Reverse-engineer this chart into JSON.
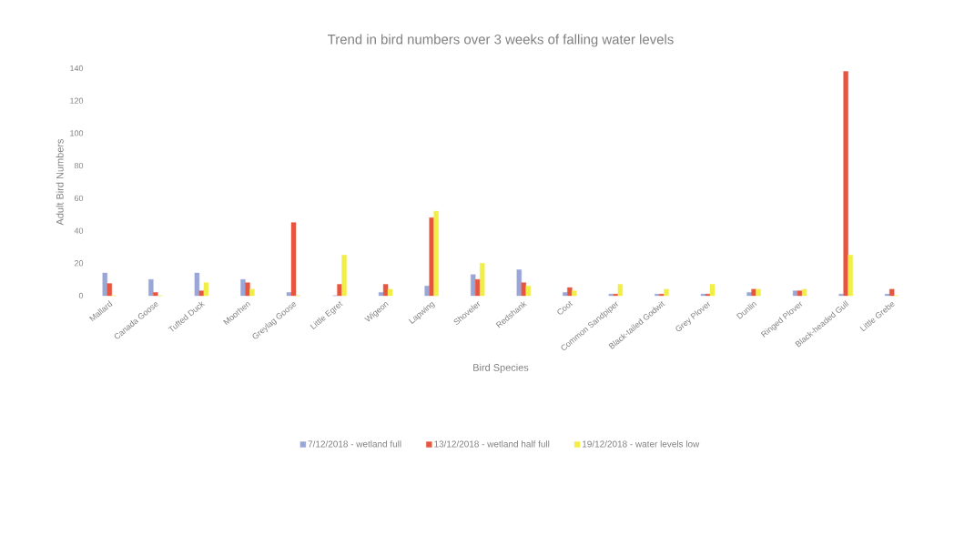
{
  "chart_data": {
    "type": "bar",
    "title": "Trend in bird numbers over 3 weeks of falling water levels",
    "xlabel": "Bird Species",
    "ylabel": "Adult Bird Numbers",
    "categories": [
      "Mallard",
      "Canada Goose",
      "Tufted Duck",
      "Moorhen",
      "Greylag Goose",
      "Little Egret",
      "Wigeon",
      "Lapwing",
      "Shoveler",
      "Redshank",
      "Coot",
      "Common Sandpiper",
      "Black-tailed Godwit",
      "Grey Plover",
      "Dunlin",
      "Ringed Plover",
      "Black-headed Gull",
      "Little Grebe"
    ],
    "series": [
      {
        "name": "7/12/2018 - wetland full",
        "color": "#9aa6d6",
        "values": [
          14,
          10,
          14,
          10,
          2,
          0,
          2,
          6,
          13,
          16,
          2,
          1,
          1,
          1,
          2,
          3,
          1,
          1
        ]
      },
      {
        "name": "13/12/2018 - wetland half full",
        "color": "#e8553f",
        "values": [
          7.5,
          2,
          3,
          8,
          45,
          7,
          7,
          48,
          10,
          8,
          5,
          1,
          1,
          1,
          4,
          3,
          138,
          4
        ]
      },
      {
        "name": "19/12/2018 - water levels low",
        "color": "#f2ee48",
        "values": [
          0,
          0,
          8,
          4,
          0,
          25,
          4,
          52,
          20,
          6,
          3,
          7,
          4,
          7,
          4,
          4,
          25,
          0
        ]
      }
    ],
    "ylim": [
      0,
      140
    ],
    "yticks": [
      0,
      20,
      40,
      60,
      80,
      100,
      120,
      140
    ],
    "grid": false,
    "legend": "bottom"
  }
}
